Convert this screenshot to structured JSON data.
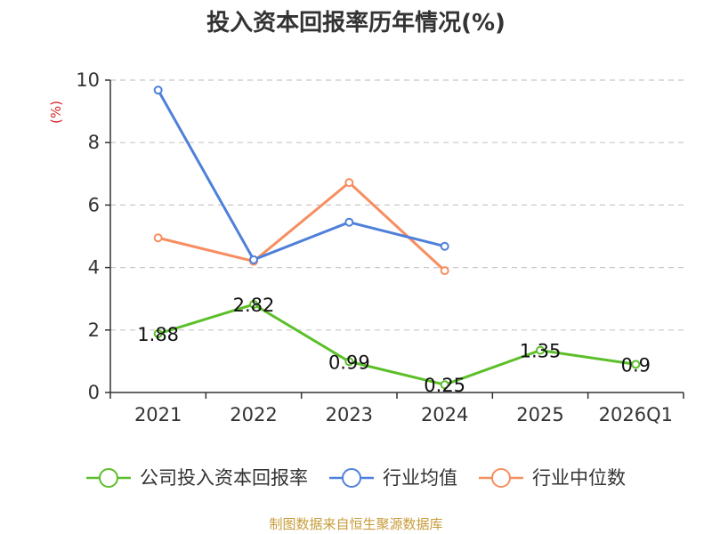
{
  "chart_data": {
    "type": "line",
    "title": "投入资本回报率历年情况(%)",
    "ylabel": "(%)",
    "xlabel": "",
    "categories": [
      "2021",
      "2022",
      "2023",
      "2024",
      "2025",
      "2026Q1"
    ],
    "ylim": [
      0,
      10
    ],
    "yticks": [
      0,
      2,
      4,
      6,
      8,
      10
    ],
    "grid": true,
    "legend_position": "bottom",
    "series": [
      {
        "name": "公司投入资本回报率",
        "color": "#5cbf2a",
        "values": [
          1.88,
          2.82,
          0.99,
          0.25,
          1.35,
          0.9
        ],
        "labels": [
          "1.88",
          "2.82",
          "0.99",
          "0.25",
          "1.35",
          "0.9"
        ],
        "show_labels": true
      },
      {
        "name": "行业均值",
        "color": "#4f80d9",
        "values": [
          9.68,
          4.25,
          5.45,
          4.68,
          null,
          null
        ],
        "show_labels": false
      },
      {
        "name": "行业中位数",
        "color": "#f68e5f",
        "values": [
          4.95,
          4.2,
          6.72,
          3.9,
          null,
          null
        ],
        "show_labels": false
      }
    ]
  },
  "styles": {
    "ylabel_color": "#d62728",
    "source_color": "#c79c3a",
    "grid_color": "#c8c8c8",
    "axis_color": "#333333"
  },
  "footer": {
    "source": "制图数据来自恒生聚源数据库"
  }
}
